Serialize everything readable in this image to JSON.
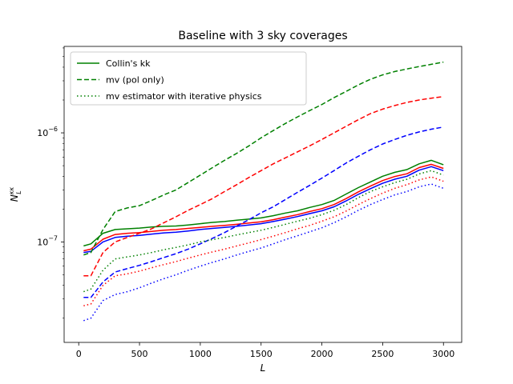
{
  "chart_data": {
    "type": "line",
    "title": "Baseline with 3 sky coverages",
    "xlabel": "L",
    "ylabel_main": "N",
    "ylabel_sup": "κκ",
    "ylabel_sub": "L",
    "xlim": [
      -120,
      3150
    ],
    "ylim": [
      1.2e-08,
      6.2e-06
    ],
    "yscale": "log",
    "xticks": [
      0,
      500,
      1000,
      1500,
      2000,
      2500,
      3000
    ],
    "xtick_labels": [
      "0",
      "500",
      "1000",
      "1500",
      "2000",
      "2500",
      "3000"
    ],
    "yticks": [
      1e-07,
      1e-06
    ],
    "ytick_base": "10",
    "ytick_exponents": [
      "−7",
      "−6"
    ],
    "grid": false,
    "legend_position": "top-left",
    "legend": [
      {
        "label": "Collin's kk",
        "style": "solid",
        "color": "#008000"
      },
      {
        "label": "mv (pol only)",
        "style": "dashed",
        "color": "#008000"
      },
      {
        "label": "mv estimator with iterative physics",
        "style": "dotted",
        "color": "#008000"
      }
    ],
    "x": [
      40,
      100,
      200,
      300,
      400,
      500,
      600,
      700,
      800,
      900,
      1000,
      1100,
      1200,
      1300,
      1400,
      1500,
      1600,
      1700,
      1800,
      1900,
      2000,
      2100,
      2200,
      2300,
      2400,
      2500,
      2600,
      2700,
      2800,
      2900,
      3000
    ],
    "series": [
      {
        "color": "#008000",
        "style": "solid",
        "values": [
          9.2e-08,
          9.6e-08,
          1.2e-07,
          1.3e-07,
          1.32e-07,
          1.34e-07,
          1.37e-07,
          1.39e-07,
          1.4e-07,
          1.43e-07,
          1.47e-07,
          1.51e-07,
          1.54e-07,
          1.58e-07,
          1.62e-07,
          1.66e-07,
          1.74e-07,
          1.84e-07,
          1.93e-07,
          2.07e-07,
          2.2e-07,
          2.4e-07,
          2.75e-07,
          3.15e-07,
          3.55e-07,
          4e-07,
          4.35e-07,
          4.6e-07,
          5.2e-07,
          5.6e-07,
          5.1e-07
        ]
      },
      {
        "color": "#ff0000",
        "style": "solid",
        "values": [
          8.3e-08,
          8.6e-08,
          1.06e-07,
          1.17e-07,
          1.2e-07,
          1.22e-07,
          1.25e-07,
          1.28e-07,
          1.3e-07,
          1.33e-07,
          1.36e-07,
          1.39e-07,
          1.42e-07,
          1.45e-07,
          1.49e-07,
          1.53e-07,
          1.6e-07,
          1.69e-07,
          1.78e-07,
          1.9e-07,
          2.02e-07,
          2.2e-07,
          2.5e-07,
          2.88e-07,
          3.25e-07,
          3.65e-07,
          3.98e-07,
          4.22e-07,
          4.8e-07,
          5.15e-07,
          4.72e-07
        ]
      },
      {
        "color": "#0000ff",
        "style": "solid",
        "values": [
          8e-08,
          8.2e-08,
          1e-07,
          1.1e-07,
          1.13e-07,
          1.15e-07,
          1.18e-07,
          1.21e-07,
          1.23e-07,
          1.26e-07,
          1.3e-07,
          1.33e-07,
          1.36e-07,
          1.39e-07,
          1.43e-07,
          1.47e-07,
          1.54e-07,
          1.62e-07,
          1.71e-07,
          1.82e-07,
          1.93e-07,
          2.1e-07,
          2.38e-07,
          2.73e-07,
          3.08e-07,
          3.45e-07,
          3.76e-07,
          4e-07,
          4.55e-07,
          4.9e-07,
          4.5e-07
        ]
      },
      {
        "color": "#008000",
        "style": "dashed",
        "values": [
          7.6e-08,
          8e-08,
          1.3e-07,
          1.9e-07,
          2.05e-07,
          2.15e-07,
          2.4e-07,
          2.7e-07,
          3e-07,
          3.5e-07,
          4.1e-07,
          4.8e-07,
          5.6e-07,
          6.5e-07,
          7.6e-07,
          9e-07,
          1.05e-06,
          1.22e-06,
          1.4e-06,
          1.6e-06,
          1.82e-06,
          2.1e-06,
          2.4e-06,
          2.75e-06,
          3.1e-06,
          3.4e-06,
          3.65e-06,
          3.85e-06,
          4.05e-06,
          4.25e-06,
          4.45e-06
        ]
      },
      {
        "color": "#ff0000",
        "style": "dashed",
        "values": [
          4.9e-08,
          4.9e-08,
          8e-08,
          1e-07,
          1.1e-07,
          1.2e-07,
          1.32e-07,
          1.5e-07,
          1.7e-07,
          1.95e-07,
          2.2e-07,
          2.5e-07,
          2.9e-07,
          3.35e-07,
          3.9e-07,
          4.5e-07,
          5.2e-07,
          5.9e-07,
          6.7e-07,
          7.6e-07,
          8.7e-07,
          1e-06,
          1.15e-06,
          1.32e-06,
          1.5e-06,
          1.65e-06,
          1.78e-06,
          1.9e-06,
          2e-06,
          2.08e-06,
          2.15e-06
        ]
      },
      {
        "color": "#0000ff",
        "style": "dashed",
        "values": [
          3.1e-08,
          3.1e-08,
          4.3e-08,
          5.3e-08,
          5.7e-08,
          6.1e-08,
          6.6e-08,
          7.2e-08,
          7.8e-08,
          8.6e-08,
          9.6e-08,
          1.08e-07,
          1.22e-07,
          1.4e-07,
          1.6e-07,
          1.85e-07,
          2.1e-07,
          2.45e-07,
          2.85e-07,
          3.3e-07,
          3.85e-07,
          4.5e-07,
          5.3e-07,
          6.1e-07,
          7e-07,
          7.9e-07,
          8.7e-07,
          9.5e-07,
          1.02e-06,
          1.08e-06,
          1.13e-06
        ]
      },
      {
        "color": "#008000",
        "style": "dotted",
        "values": [
          3.5e-08,
          3.7e-08,
          5.5e-08,
          7e-08,
          7.3e-08,
          7.6e-08,
          8e-08,
          8.5e-08,
          8.9e-08,
          9.4e-08,
          1e-07,
          1.05e-07,
          1.1e-07,
          1.16e-07,
          1.22e-07,
          1.28e-07,
          1.36e-07,
          1.45e-07,
          1.55e-07,
          1.65e-07,
          1.78e-07,
          1.95e-07,
          2.2e-07,
          2.55e-07,
          2.9e-07,
          3.2e-07,
          3.5e-07,
          3.75e-07,
          4.2e-07,
          4.5e-07,
          4.1e-07
        ]
      },
      {
        "color": "#ff0000",
        "style": "dotted",
        "values": [
          2.6e-08,
          2.7e-08,
          4e-08,
          4.9e-08,
          5.1e-08,
          5.4e-08,
          5.8e-08,
          6.2e-08,
          6.6e-08,
          7.1e-08,
          7.6e-08,
          8.1e-08,
          8.6e-08,
          9.2e-08,
          9.8e-08,
          1.05e-07,
          1.13e-07,
          1.22e-07,
          1.32e-07,
          1.42e-07,
          1.55e-07,
          1.7e-07,
          1.92e-07,
          2.2e-07,
          2.5e-07,
          2.8e-07,
          3.1e-07,
          3.35e-07,
          3.7e-07,
          3.95e-07,
          3.6e-07
        ]
      },
      {
        "color": "#0000ff",
        "style": "dotted",
        "values": [
          1.9e-08,
          2e-08,
          2.9e-08,
          3.3e-08,
          3.5e-08,
          3.8e-08,
          4.2e-08,
          4.6e-08,
          5e-08,
          5.5e-08,
          6e-08,
          6.5e-08,
          7e-08,
          7.6e-08,
          8.2e-08,
          8.8e-08,
          9.6e-08,
          1.05e-07,
          1.14e-07,
          1.24e-07,
          1.35e-07,
          1.5e-07,
          1.7e-07,
          1.95e-07,
          2.2e-07,
          2.45e-07,
          2.7e-07,
          2.9e-07,
          3.2e-07,
          3.4e-07,
          3.1e-07
        ]
      }
    ]
  }
}
